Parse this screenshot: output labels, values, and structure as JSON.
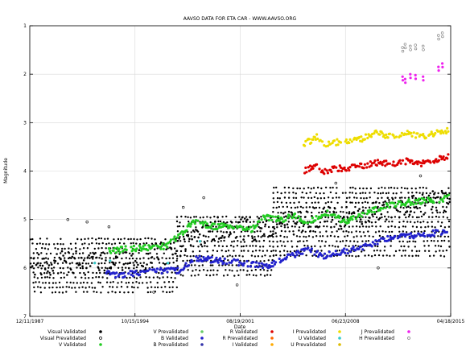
{
  "chart_data": {
    "type": "scatter",
    "title": "AAVSO DATA FOR ETA CAR - WWW.AAVSO.ORG",
    "xlabel": "Date",
    "ylabel": "Magnitude",
    "x_is_date": true,
    "xlim": [
      "1987-12-11",
      "2015-04-18"
    ],
    "ylim": [
      7,
      1
    ],
    "y_inverted": true,
    "xticks": [
      "12/11/1987",
      "10/15/1994",
      "08/19/2001",
      "06/23/2008",
      "04/18/2015"
    ],
    "yticks": [
      1,
      2,
      3,
      4,
      5,
      6,
      7
    ],
    "grid": true,
    "legend_position": "bottom",
    "series": [
      {
        "name": "Visual Validated",
        "color": "#000000",
        "marker": "dot",
        "bands": [
          {
            "x_from": "1987-12-11",
            "x_to": "1997-07-01",
            "y_from": 5.4,
            "y_to": 6.55,
            "density": "heavy"
          },
          {
            "x_from": "1997-07-01",
            "x_to": "2003-10-01",
            "y_from": 4.95,
            "y_to": 6.2,
            "density": "heavy"
          },
          {
            "x_from": "2003-10-01",
            "x_to": "2015-04-18",
            "y_from": 4.35,
            "y_to": 5.75,
            "density": "heavy"
          }
        ],
        "trend": [
          [
            "1987-12-11",
            5.9
          ],
          [
            "1994-10-15",
            5.9
          ],
          [
            "1997-07-01",
            5.6
          ],
          [
            "2000-01-01",
            5.2
          ],
          [
            "2003-01-01",
            5.2
          ],
          [
            "2006-01-01",
            5.0
          ],
          [
            "2008-06-23",
            4.95
          ],
          [
            "2012-01-01",
            4.7
          ],
          [
            "2015-04-18",
            4.6
          ]
        ]
      },
      {
        "name": "Visual Prevalidated",
        "color": "#000000",
        "marker": "open-circle",
        "points": [
          [
            "1990-06-01",
            5.0
          ],
          [
            "1991-09-01",
            5.05
          ],
          [
            "1993-02-01",
            5.15
          ],
          [
            "1996-01-01",
            6.5
          ],
          [
            "1997-12-01",
            4.75
          ],
          [
            "1999-04-01",
            4.55
          ],
          [
            "2001-06-01",
            6.35
          ],
          [
            "2007-11-01",
            4.25
          ],
          [
            "2010-08-01",
            6.0
          ],
          [
            "2013-05-01",
            4.1
          ]
        ]
      },
      {
        "name": "V Validated",
        "color": "#22cc22",
        "marker": "dot",
        "trend": [
          [
            "1993-02-01",
            5.65
          ],
          [
            "1994-06-01",
            5.6
          ],
          [
            "1996-10-01",
            5.55
          ],
          [
            "1997-08-01",
            5.35
          ],
          [
            "1998-08-01",
            5.05
          ],
          [
            "2000-01-01",
            5.15
          ],
          [
            "2001-06-01",
            5.12
          ],
          [
            "2002-06-01",
            5.2
          ],
          [
            "2003-02-01",
            4.95
          ],
          [
            "2004-06-01",
            5.0
          ],
          [
            "2005-03-01",
            4.9
          ],
          [
            "2006-01-01",
            5.08
          ],
          [
            "2007-03-01",
            4.85
          ],
          [
            "2008-06-23",
            5.05
          ],
          [
            "2009-06-01",
            4.9
          ],
          [
            "2010-06-01",
            4.8
          ],
          [
            "2011-06-01",
            4.7
          ],
          [
            "2012-06-01",
            4.65
          ],
          [
            "2013-06-01",
            4.62
          ],
          [
            "2014-06-01",
            4.6
          ],
          [
            "2015-03-01",
            4.55
          ]
        ]
      },
      {
        "name": "V Prevalidated",
        "color": "#66cc66",
        "marker": "dot",
        "points": []
      },
      {
        "name": "B Validated",
        "color": "#2222cc",
        "marker": "dot",
        "trend": [
          [
            "1992-12-01",
            6.1
          ],
          [
            "1993-08-01",
            6.15
          ],
          [
            "1996-10-01",
            6.05
          ],
          [
            "1997-11-01",
            6.05
          ],
          [
            "1998-08-01",
            5.8
          ],
          [
            "2003-06-01",
            5.95
          ],
          [
            "2004-08-01",
            5.8
          ],
          [
            "2006-01-01",
            5.63
          ],
          [
            "2007-01-01",
            5.75
          ],
          [
            "2008-06-23",
            5.65
          ],
          [
            "2009-12-01",
            5.55
          ],
          [
            "2011-01-01",
            5.4
          ],
          [
            "2012-06-01",
            5.35
          ],
          [
            "2013-10-01",
            5.3
          ],
          [
            "2014-10-01",
            5.25
          ],
          [
            "2015-03-01",
            5.2
          ]
        ]
      },
      {
        "name": "B Prevalidated",
        "color": "#3333aa",
        "marker": "dot",
        "points": []
      },
      {
        "name": "R Validated",
        "color": "#dd0000",
        "marker": "dot",
        "trend": [
          [
            "2005-10-01",
            4.0
          ],
          [
            "2006-08-01",
            3.88
          ],
          [
            "2007-01-01",
            4.0
          ],
          [
            "2008-01-01",
            3.95
          ],
          [
            "2009-06-01",
            3.9
          ],
          [
            "2010-06-01",
            3.82
          ],
          [
            "2011-06-01",
            3.85
          ],
          [
            "2012-06-01",
            3.8
          ],
          [
            "2013-06-01",
            3.85
          ],
          [
            "2014-06-01",
            3.75
          ],
          [
            "2015-03-01",
            3.7
          ]
        ]
      },
      {
        "name": "R Prevalidated",
        "color": "#ff6600",
        "marker": "dot",
        "points": []
      },
      {
        "name": "I Validated",
        "color": "#ffaa00",
        "marker": "dot",
        "points": []
      },
      {
        "name": "I Prevalidated",
        "color": "#eedd00",
        "marker": "dot",
        "trend": [
          [
            "2005-10-01",
            3.45
          ],
          [
            "2006-08-01",
            3.3
          ],
          [
            "2007-01-01",
            3.45
          ],
          [
            "2008-01-01",
            3.4
          ],
          [
            "2009-06-01",
            3.35
          ],
          [
            "2010-06-01",
            3.22
          ],
          [
            "2011-06-01",
            3.28
          ],
          [
            "2012-06-01",
            3.22
          ],
          [
            "2013-06-01",
            3.28
          ],
          [
            "2014-06-01",
            3.2
          ],
          [
            "2015-03-01",
            3.15
          ]
        ]
      },
      {
        "name": "U Validated",
        "color": "#33cccc",
        "marker": "dot",
        "points": [
          [
            "1992-03-01",
            5.9
          ],
          [
            "1993-03-01",
            5.85
          ],
          [
            "1996-12-01",
            5.9
          ],
          [
            "1999-01-01",
            5.45
          ]
        ]
      },
      {
        "name": "U Prevalidated",
        "color": "#ddbb00",
        "marker": "dot",
        "points": []
      },
      {
        "name": "J Prevalidated",
        "color": "#ee22ee",
        "marker": "dot",
        "points": [
          [
            "2012-03-01",
            2.05
          ],
          [
            "2012-05-01",
            2.1
          ],
          [
            "2012-09-01",
            2.0
          ],
          [
            "2013-01-01",
            2.02
          ],
          [
            "2013-07-01",
            2.05
          ],
          [
            "2014-07-01",
            1.85
          ],
          [
            "2014-10-01",
            1.78
          ]
        ]
      },
      {
        "name": "H Prevalidated",
        "color": "#777777",
        "marker": "open-circle",
        "points": [
          [
            "2012-03-01",
            1.45
          ],
          [
            "2012-05-01",
            1.38
          ],
          [
            "2012-09-01",
            1.42
          ],
          [
            "2013-01-01",
            1.4
          ],
          [
            "2013-07-01",
            1.42
          ],
          [
            "2014-07-01",
            1.2
          ],
          [
            "2014-10-01",
            1.15
          ]
        ]
      }
    ]
  }
}
